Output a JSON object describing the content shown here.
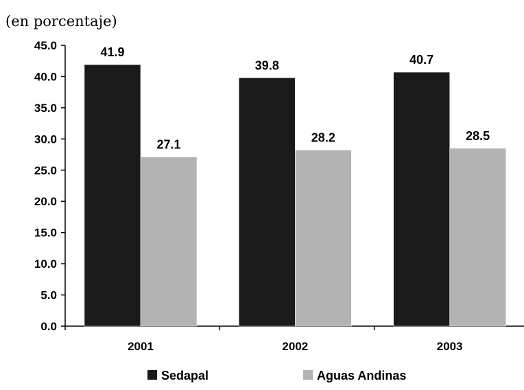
{
  "chart_data": {
    "type": "bar",
    "subtitle": "(en porcentaje)",
    "categories": [
      "2001",
      "2002",
      "2003"
    ],
    "series": [
      {
        "name": "Sedapal",
        "values": [
          41.9,
          39.8,
          40.7
        ],
        "color": "#1a1a1a"
      },
      {
        "name": "Aguas Andinas",
        "values": [
          27.1,
          28.2,
          28.5
        ],
        "color": "#b3b3b3"
      }
    ],
    "ylim": [
      0,
      45
    ],
    "yticks": [
      "0.0",
      "5.0",
      "10.0",
      "15.0",
      "20.0",
      "25.0",
      "30.0",
      "35.0",
      "40.0",
      "45.0"
    ],
    "ytick_step": 5,
    "grid": false,
    "legend": "bottom"
  }
}
